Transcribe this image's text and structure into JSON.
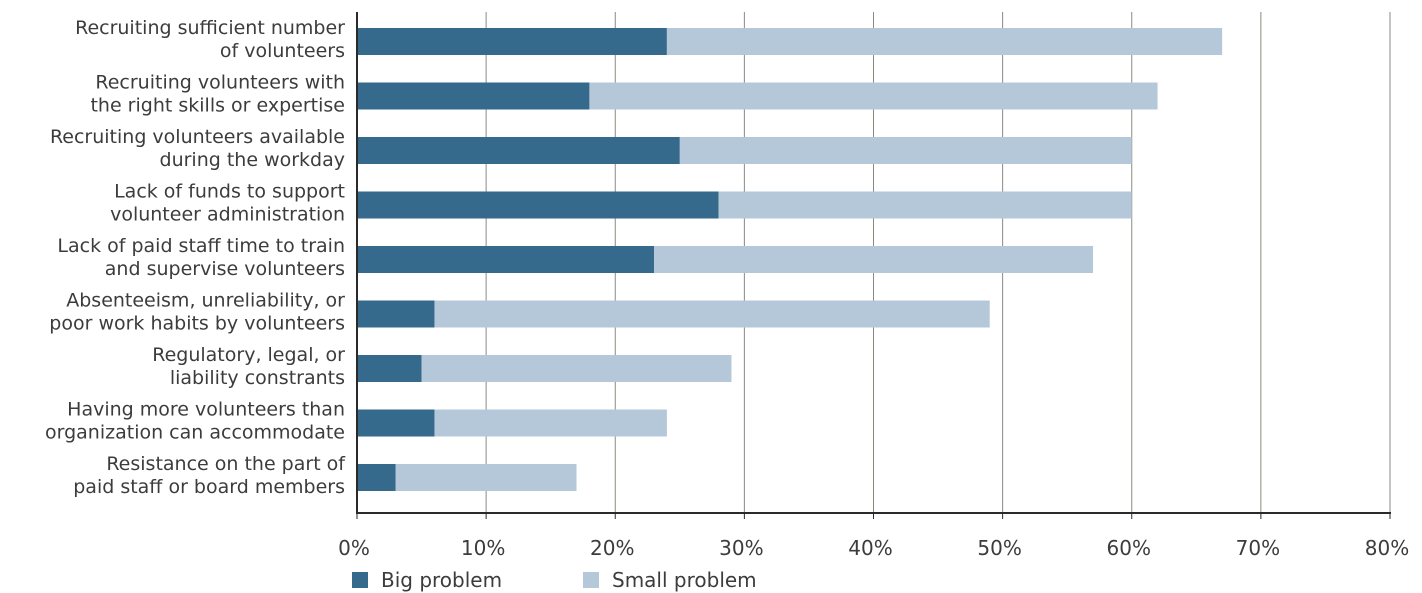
{
  "chart_data": {
    "type": "bar",
    "orientation": "horizontal",
    "stacked": true,
    "categories": [
      [
        "Recruiting sufficient number",
        "of volunteers"
      ],
      [
        "Recruiting volunteers with",
        "the right skills or expertise"
      ],
      [
        "Recruiting volunteers available",
        "during the workday"
      ],
      [
        "Lack of funds to support",
        "volunteer administration"
      ],
      [
        "Lack of paid staff time to train",
        "and supervise volunteers"
      ],
      [
        "Absenteeism, unreliability, or",
        "poor work habits by volunteers"
      ],
      [
        "Regulatory, legal, or",
        "liability constrants"
      ],
      [
        "Having more volunteers than",
        "organization can accommodate"
      ],
      [
        "Resistance on the part of",
        "paid staff or board members"
      ]
    ],
    "series": [
      {
        "name": "Big problem",
        "color": "#356a8c",
        "values": [
          24,
          18,
          25,
          28,
          23,
          6,
          5,
          6,
          3
        ]
      },
      {
        "name": "Small problem",
        "color": "#b5c8da",
        "values": [
          43,
          44,
          35,
          32,
          34,
          43,
          24,
          18,
          14
        ]
      }
    ],
    "xlim": [
      0,
      80
    ],
    "xticks": [
      0,
      10,
      20,
      30,
      40,
      50,
      60,
      70,
      80
    ],
    "tick_suffix": "%",
    "grid": true,
    "grid_color": "#8a8a80",
    "axis_color": "#2a2a2a",
    "legend_position": "bottom-left",
    "title": "",
    "xlabel": "",
    "ylabel": ""
  }
}
